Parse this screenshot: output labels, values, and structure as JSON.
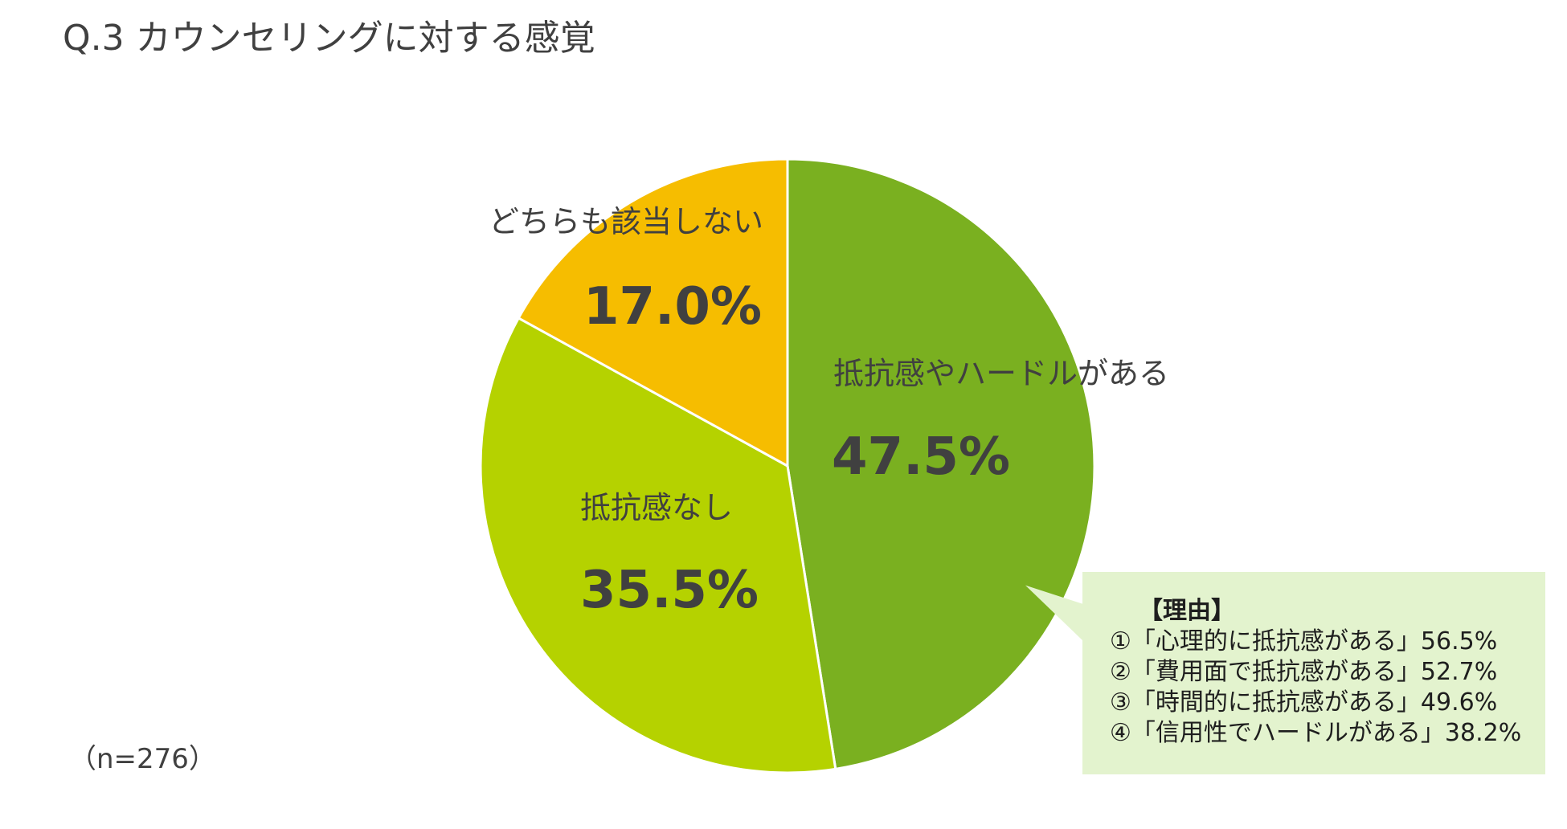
{
  "title": "Q.3 カウンセリングに対する感覚",
  "sample_size": "（n=276）",
  "chart_data": {
    "type": "pie",
    "title": "Q.3 カウンセリングに対する感覚",
    "start": "12 o'clock, clockwise",
    "slices": [
      {
        "label": "抵抗感やハードルがある",
        "value": 47.5,
        "value_label": "47.5%",
        "color": "#7ab020"
      },
      {
        "label": "抵抗感なし",
        "value": 35.5,
        "value_label": "35.5%",
        "color": "#b5d200"
      },
      {
        "label": "どちらも該当しない",
        "value": 17.0,
        "value_label": "17.0%",
        "color": "#f6bd00"
      }
    ],
    "slice_border_color": "#ffffff"
  },
  "callout": {
    "heading": "【理由】",
    "color": "#e3f3ce",
    "items": [
      "①「心理的に抵抗感がある」56.5%",
      "②「費用面で抵抗感がある」52.7%",
      "③「時間的に抵抗感がある」49.6%",
      "④「信用性でハードルがある」38.2%"
    ]
  }
}
